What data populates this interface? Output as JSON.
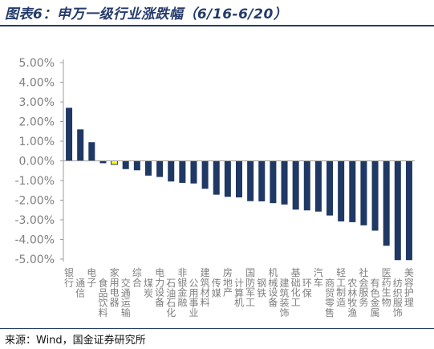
{
  "figure": {
    "title": "图表6：申万一级行业涨跌幅（6/16-6/20）",
    "source": "来源：Wind，国金证券研究所"
  },
  "chart_data": {
    "type": "bar",
    "categories": [
      "银行",
      "通信",
      "电子",
      "食品饮料",
      "家用电器",
      "交通运输",
      "综合",
      "煤炭",
      "电力设备",
      "石油石化",
      "非银金融",
      "公用事业",
      "建筑材料",
      "传媒",
      "房地产",
      "计算机",
      "国防军工",
      "钢铁",
      "机械设备",
      "建筑装饰",
      "基础化工",
      "环保",
      "汽车",
      "商贸零售",
      "轻工制造",
      "农林牧渔",
      "社会服务",
      "有色金属",
      "医药生物",
      "纺织服饰",
      "美容护理"
    ],
    "values": [
      2.7,
      1.6,
      0.95,
      -0.12,
      -0.18,
      -0.42,
      -0.48,
      -0.75,
      -0.82,
      -1.05,
      -1.12,
      -1.15,
      -1.42,
      -1.72,
      -1.83,
      -1.86,
      -2.05,
      -2.06,
      -2.15,
      -2.22,
      -2.48,
      -2.52,
      -2.58,
      -2.78,
      -3.08,
      -3.12,
      -3.28,
      -3.55,
      -4.32,
      -5.05,
      -5.05
    ],
    "highlight_index": 4,
    "ylim": [
      -5.0,
      5.0
    ],
    "yticks": [
      5,
      4,
      3,
      2,
      1,
      0,
      -1,
      -2,
      -3,
      -4,
      -5
    ],
    "ytick_labels": [
      "5.00%",
      "4.00%",
      "3.00%",
      "2.00%",
      "1.00%",
      "0.00%",
      "-1.00%",
      "-2.00%",
      "-3.00%",
      "-4.00%",
      "-5.00%"
    ],
    "xlabel": "",
    "ylabel": "",
    "grid": false,
    "colors": {
      "bar": "#1f3864",
      "highlight": "#ffff00",
      "highlight_stroke": "#1f3864",
      "axis": "#9e9e9e",
      "text": "#7f7f7f"
    }
  }
}
